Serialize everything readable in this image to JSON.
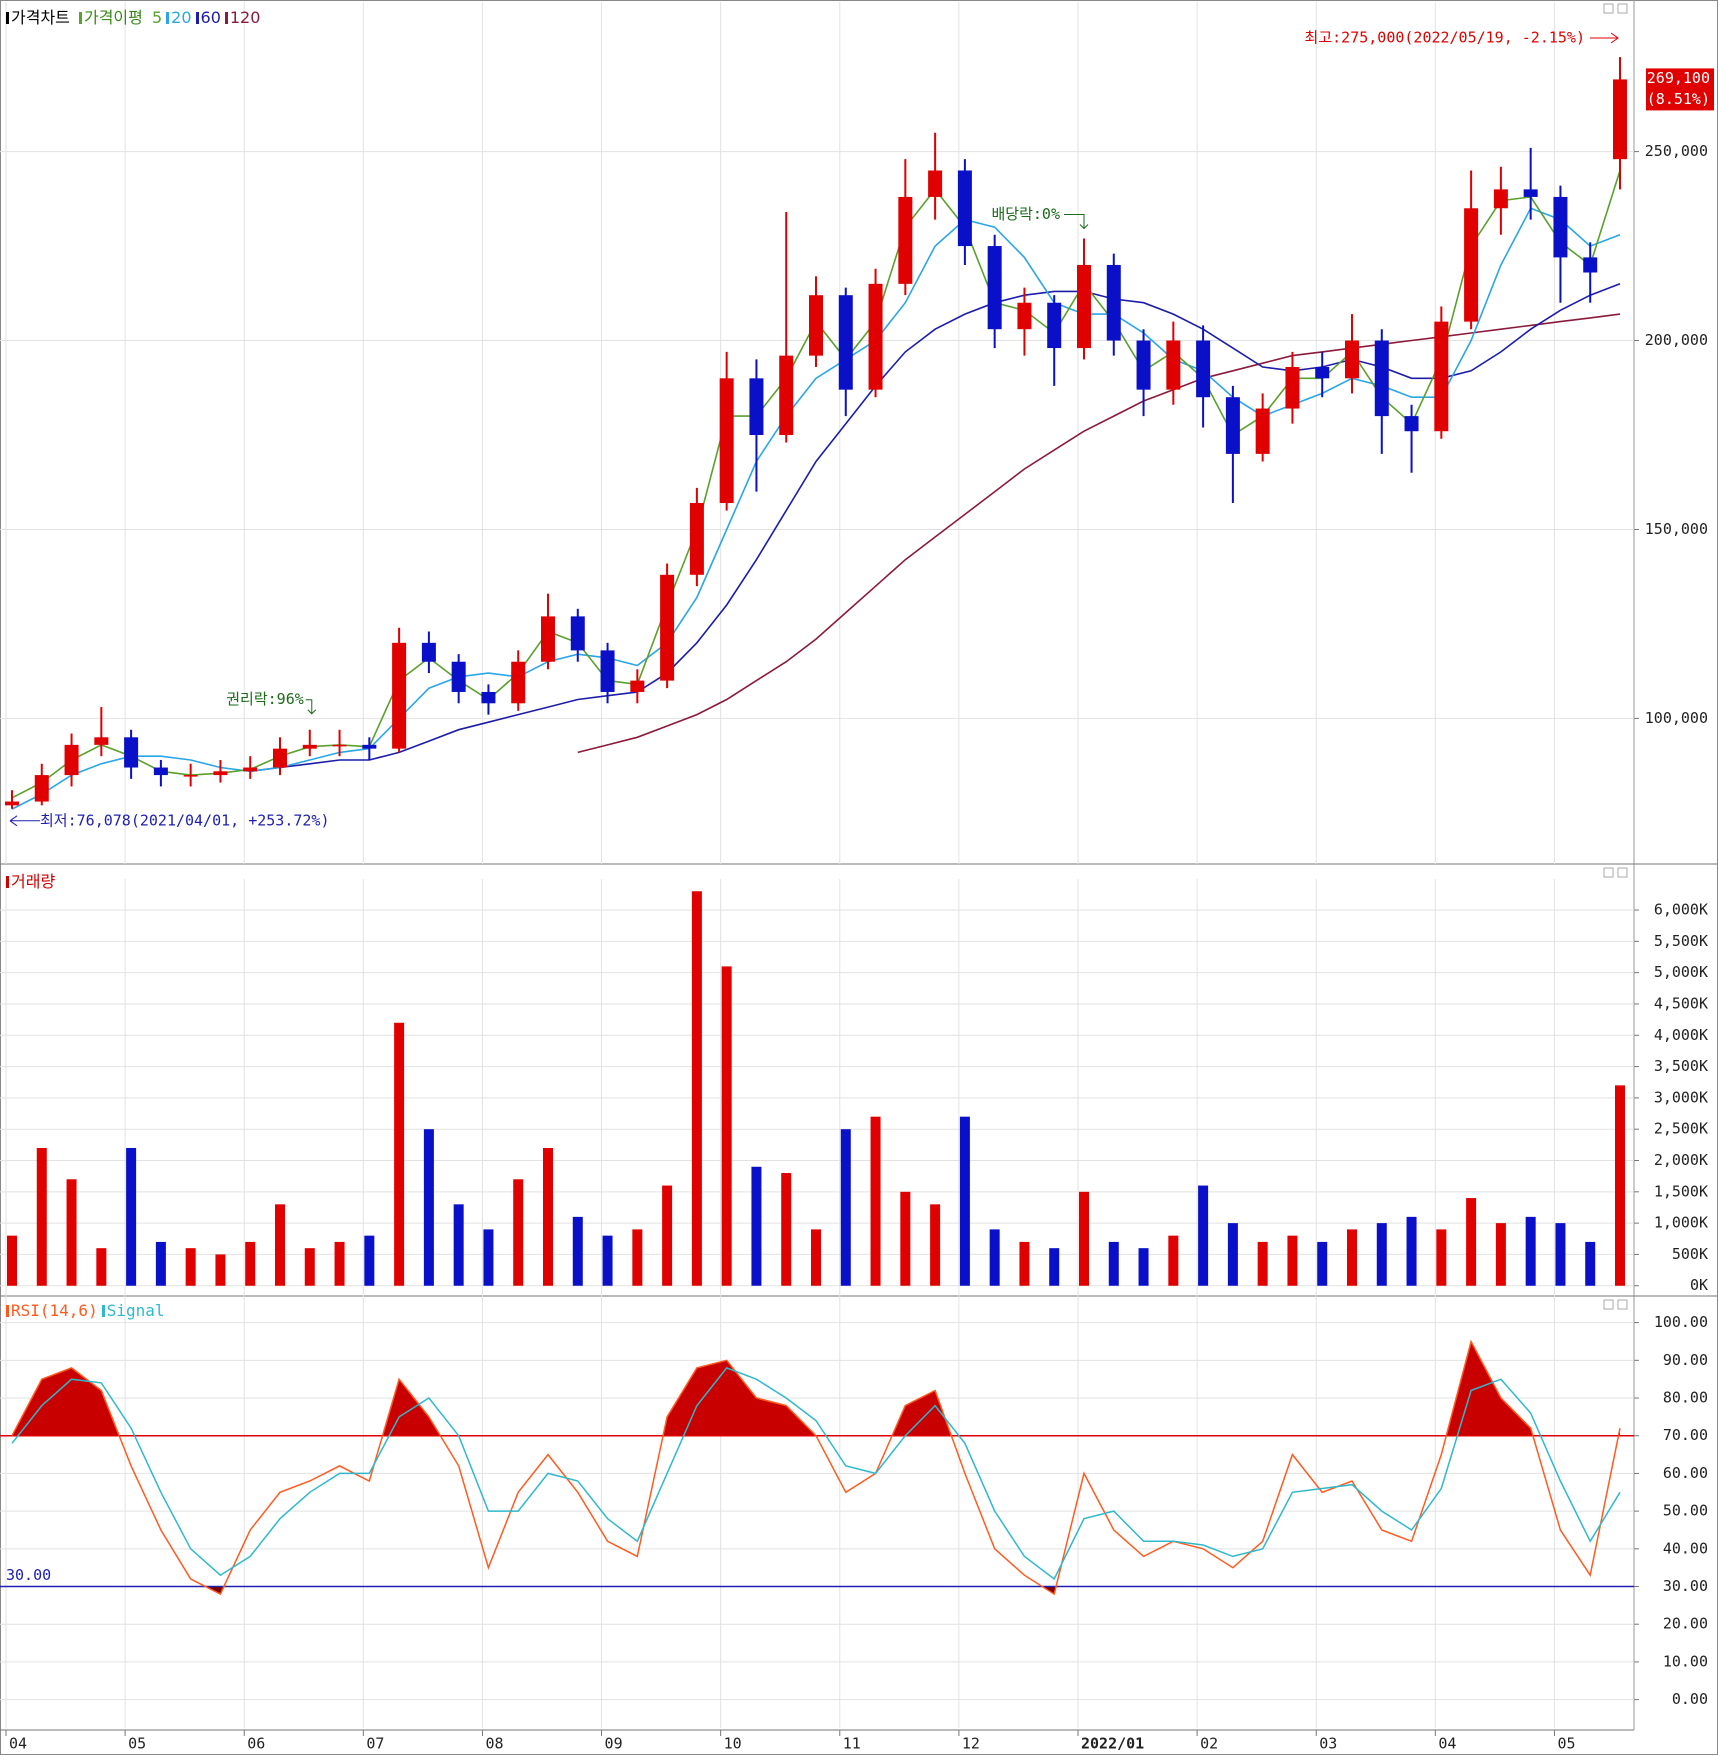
{
  "chart_data": [
    {
      "type": "candlestick",
      "legend_title": "가격차트",
      "ma_title": "가격이평",
      "open": [
        77000,
        78000,
        85000,
        93000,
        95000,
        87000,
        85000,
        85000,
        86000,
        87000,
        92000,
        93000,
        93000,
        92000,
        120000,
        115000,
        107000,
        104000,
        115000,
        127000,
        118000,
        107000,
        110000,
        138000,
        157000,
        190000,
        175000,
        196000,
        212000,
        187000,
        215000,
        238000,
        245000,
        225000,
        203000,
        210000,
        198000,
        220000,
        200000,
        187000,
        200000,
        185000,
        170000,
        182000,
        193000,
        190000,
        200000,
        180000,
        176000,
        205000,
        235000,
        240000,
        238000,
        222000,
        248000
      ],
      "high": [
        81000,
        88000,
        96000,
        103000,
        97000,
        89000,
        88000,
        89000,
        90000,
        95000,
        97000,
        97000,
        95000,
        124000,
        123000,
        117000,
        109000,
        118000,
        133000,
        129000,
        120000,
        113000,
        141000,
        161000,
        197000,
        195000,
        234000,
        217000,
        214000,
        219000,
        248000,
        255000,
        248000,
        228000,
        214000,
        212000,
        227000,
        223000,
        203000,
        205000,
        204000,
        188000,
        186000,
        197000,
        197000,
        207000,
        203000,
        183000,
        209000,
        245000,
        246000,
        251000,
        241000,
        226000,
        275000
      ],
      "low": [
        76078,
        77000,
        82000,
        90000,
        84000,
        82000,
        82000,
        83000,
        84000,
        85000,
        90000,
        90000,
        89000,
        91000,
        112000,
        104000,
        101000,
        102000,
        113000,
        115000,
        104000,
        104000,
        108000,
        135000,
        155000,
        160000,
        173000,
        193000,
        180000,
        185000,
        212000,
        232000,
        220000,
        198000,
        196000,
        188000,
        195000,
        196000,
        180000,
        183000,
        177000,
        157000,
        168000,
        178000,
        185000,
        186000,
        170000,
        165000,
        174000,
        203000,
        228000,
        232000,
        210000,
        210000,
        240000
      ],
      "close": [
        78000,
        85000,
        93000,
        95000,
        87000,
        85000,
        85000,
        86000,
        87000,
        92000,
        93000,
        93000,
        92000,
        120000,
        115000,
        107000,
        104000,
        115000,
        127000,
        118000,
        107000,
        110000,
        138000,
        157000,
        190000,
        175000,
        196000,
        212000,
        187000,
        215000,
        238000,
        245000,
        225000,
        203000,
        210000,
        198000,
        220000,
        200000,
        187000,
        200000,
        185000,
        170000,
        182000,
        193000,
        190000,
        200000,
        180000,
        176000,
        205000,
        235000,
        240000,
        238000,
        222000,
        218000,
        269100
      ],
      "up_color": "#e00000",
      "down_color": "#0a10c8",
      "series": [
        {
          "name": "5",
          "color": "#5aa02c",
          "values": [
            79000,
            83000,
            89000,
            93000,
            90000,
            86000,
            85000,
            85500,
            86500,
            90000,
            92500,
            93000,
            92500,
            110000,
            116000,
            110000,
            105000,
            112000,
            123000,
            120000,
            110000,
            109000,
            130000,
            150000,
            180000,
            180000,
            190000,
            205000,
            195000,
            205000,
            230000,
            240000,
            230000,
            210000,
            208000,
            202000,
            215000,
            205000,
            192000,
            197000,
            190000,
            175000,
            180000,
            190000,
            190000,
            197000,
            185000,
            178000,
            195000,
            225000,
            237000,
            238000,
            226000,
            220000,
            245000
          ]
        },
        {
          "name": "20",
          "color": "#2aa6e6",
          "values": [
            76000,
            80000,
            85000,
            88000,
            90000,
            90000,
            89000,
            87000,
            86000,
            87000,
            89000,
            91000,
            92000,
            100000,
            108000,
            111000,
            112000,
            111000,
            115000,
            117000,
            116000,
            114000,
            120000,
            132000,
            150000,
            168000,
            180000,
            190000,
            195000,
            200000,
            210000,
            225000,
            232000,
            230000,
            222000,
            210000,
            207000,
            207000,
            202000,
            195000,
            192000,
            185000,
            180000,
            183000,
            186000,
            190000,
            188000,
            185000,
            185000,
            200000,
            220000,
            235000,
            232000,
            225000,
            228000
          ]
        },
        {
          "name": "60",
          "color": "#1c1caa",
          "values": [
            null,
            null,
            null,
            null,
            null,
            null,
            null,
            null,
            86000,
            87000,
            88000,
            89000,
            89000,
            91000,
            94000,
            97000,
            99000,
            101000,
            103000,
            105000,
            106000,
            107000,
            112000,
            120000,
            130000,
            142000,
            155000,
            168000,
            178000,
            188000,
            197000,
            203000,
            207000,
            210000,
            212000,
            213000,
            213000,
            211000,
            210000,
            207000,
            203000,
            198000,
            193000,
            192000,
            193000,
            195000,
            193000,
            190000,
            190000,
            192000,
            197000,
            203000,
            208000,
            212000,
            215000
          ]
        },
        {
          "name": "120",
          "color": "#8b1a3a",
          "values": [
            null,
            null,
            null,
            null,
            null,
            null,
            null,
            null,
            null,
            null,
            null,
            null,
            null,
            null,
            null,
            null,
            null,
            null,
            null,
            91000,
            93000,
            95000,
            98000,
            101000,
            105000,
            110000,
            115000,
            121000,
            128000,
            135000,
            142000,
            148000,
            154000,
            160000,
            166000,
            171000,
            176000,
            180000,
            184000,
            187000,
            190000,
            192000,
            194000,
            196000,
            197000,
            198000,
            199000,
            200000,
            201000,
            202000,
            203000,
            204000,
            205000,
            206000,
            207000
          ]
        }
      ],
      "ylim": [
        62000,
        288000
      ],
      "yticks": [
        {
          "value": 100000,
          "label": "100,000"
        },
        {
          "value": 150000,
          "label": "150,000"
        },
        {
          "value": 200000,
          "label": "200,000"
        },
        {
          "value": 250000,
          "label": "250,000"
        }
      ],
      "annotations": {
        "high": "최고:275,000(2022/05/19, -2.15%)",
        "low": "최저:76,078(2021/04/01, +253.72%)",
        "rights": "권리락:96%",
        "dividend": "배당락:0%"
      },
      "last_price": {
        "value": 269100,
        "label": "269,100"
      },
      "last_change": {
        "value": 8.51,
        "label": "(8.51%)"
      }
    },
    {
      "type": "bar",
      "title": "거래량",
      "values": [
        800,
        2200,
        1700,
        600,
        2200,
        700,
        600,
        500,
        700,
        1300,
        600,
        700,
        800,
        4200,
        2500,
        1300,
        900,
        1700,
        2200,
        1100,
        800,
        900,
        1600,
        6300,
        5100,
        1900,
        1800,
        900,
        2500,
        2700,
        1500,
        1300,
        2700,
        900,
        700,
        600,
        1500,
        700,
        600,
        800,
        1600,
        1000,
        700,
        800,
        700,
        900,
        1000,
        1100,
        900,
        1400,
        1000,
        1100,
        1000,
        700,
        3200
      ],
      "ylim": [
        -100,
        6400
      ],
      "yticks": [
        {
          "value": 0,
          "label": "0K"
        },
        {
          "value": 500,
          "label": "500K"
        },
        {
          "value": 1000,
          "label": "1,000K"
        },
        {
          "value": 1500,
          "label": "1,500K"
        },
        {
          "value": 2000,
          "label": "2,000K"
        },
        {
          "value": 2500,
          "label": "2,500K"
        },
        {
          "value": 3000,
          "label": "3,000K"
        },
        {
          "value": 3500,
          "label": "3,500K"
        },
        {
          "value": 4000,
          "label": "4,000K"
        },
        {
          "value": 4500,
          "label": "4,500K"
        },
        {
          "value": 5000,
          "label": "5,000K"
        },
        {
          "value": 5500,
          "label": "5,500K"
        },
        {
          "value": 6000,
          "label": "6,000K"
        }
      ]
    },
    {
      "type": "line",
      "categories": [
        "04",
        null,
        null,
        null,
        "05",
        null,
        null,
        null,
        "06",
        null,
        null,
        null,
        "07",
        null,
        null,
        null,
        "08",
        null,
        null,
        null,
        "09",
        null,
        null,
        null,
        "10",
        null,
        null,
        null,
        "11",
        null,
        null,
        null,
        "12",
        null,
        null,
        null,
        "2022/01",
        null,
        null,
        null,
        "02",
        null,
        null,
        null,
        "03",
        null,
        null,
        null,
        "04",
        null,
        null,
        null,
        "05",
        null,
        null
      ],
      "series": [
        {
          "name": "RSI(14,6)",
          "color": "#ff5a1f",
          "values": [
            70,
            85,
            88,
            82,
            62,
            45,
            32,
            28,
            45,
            55,
            58,
            62,
            58,
            85,
            75,
            62,
            35,
            55,
            65,
            55,
            42,
            38,
            75,
            88,
            90,
            80,
            78,
            70,
            55,
            60,
            78,
            82,
            60,
            40,
            33,
            28,
            60,
            45,
            38,
            42,
            40,
            35,
            42,
            65,
            55,
            58,
            45,
            42,
            65,
            95,
            80,
            72,
            45,
            33,
            72
          ]
        },
        {
          "name": "Signal",
          "color": "#2fb8cc",
          "values": [
            68,
            78,
            85,
            84,
            72,
            55,
            40,
            33,
            38,
            48,
            55,
            60,
            60,
            75,
            80,
            70,
            50,
            50,
            60,
            58,
            48,
            42,
            60,
            78,
            88,
            85,
            80,
            74,
            62,
            60,
            70,
            78,
            68,
            50,
            38,
            32,
            48,
            50,
            42,
            42,
            41,
            38,
            40,
            55,
            56,
            57,
            50,
            45,
            56,
            82,
            85,
            76,
            58,
            42,
            55
          ]
        }
      ],
      "fill_color": "#c80000",
      "upper_level": 70,
      "upper_color": "#e00000",
      "lower_level": {
        "value": 30,
        "label": "30.00"
      },
      "lower_color": "#2020b0",
      "ylim": [
        -7,
        106
      ],
      "yticks": [
        {
          "value": 0,
          "label": "0.00"
        },
        {
          "value": 10,
          "label": "10.00"
        },
        {
          "value": 20,
          "label": "20.00"
        },
        {
          "value": 30,
          "label": "30.00"
        },
        {
          "value": 40,
          "label": "40.00"
        },
        {
          "value": 50,
          "label": "50.00"
        },
        {
          "value": 60,
          "label": "60.00"
        },
        {
          "value": 70,
          "label": "70.00"
        },
        {
          "value": 80,
          "label": "80.00"
        },
        {
          "value": 90,
          "label": "90.00"
        },
        {
          "value": 100,
          "label": "100.00"
        }
      ]
    }
  ]
}
